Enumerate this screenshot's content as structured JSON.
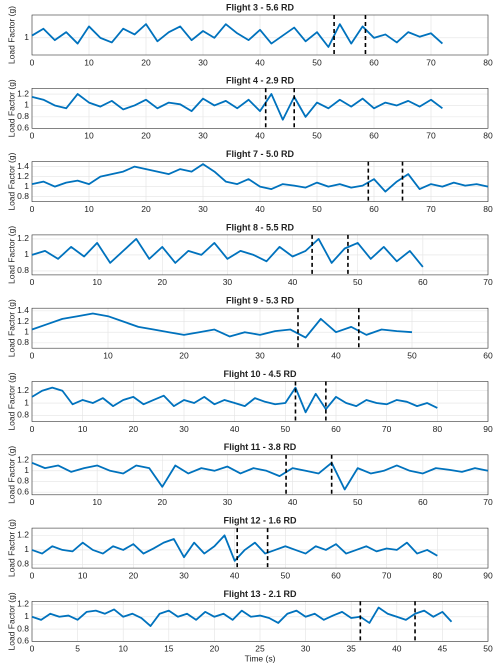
{
  "chart_data": [
    {
      "type": "line",
      "title": "Flight 3 - 5.6 RD",
      "y_label": "Load Factor (g)",
      "xlim": [
        0,
        80
      ],
      "xticks": [
        0,
        10,
        20,
        30,
        40,
        50,
        60,
        70,
        80
      ],
      "ylim": [
        0.85,
        1.2
      ],
      "yticks": [
        1
      ],
      "grid": true,
      "event_lines": [
        53,
        58.5
      ],
      "series": [
        {
          "color": "#0072bd",
          "x": [
            0,
            2,
            4,
            6,
            8,
            10,
            12,
            14,
            16,
            18,
            20,
            22,
            24,
            26,
            28,
            30,
            32,
            34,
            36,
            38,
            40,
            42,
            44,
            46,
            48,
            50,
            52,
            54,
            56,
            58,
            60,
            62,
            64,
            66,
            68,
            70,
            72
          ],
          "values": [
            1.02,
            1.08,
            0.98,
            1.05,
            0.95,
            1.1,
            1.0,
            0.96,
            1.08,
            1.03,
            1.12,
            0.97,
            1.05,
            1.1,
            0.98,
            1.06,
            1.0,
            1.12,
            1.04,
            0.98,
            1.07,
            0.95,
            1.02,
            1.09,
            0.97,
            1.05,
            0.92,
            1.12,
            0.95,
            1.1,
            1.0,
            1.03,
            0.96,
            1.05,
            1.01,
            1.04,
            0.95
          ]
        }
      ]
    },
    {
      "type": "line",
      "title": "Flight 4 - 2.9 RD",
      "y_label": "Load Factor (g)",
      "xlim": [
        0,
        80
      ],
      "xticks": [
        0,
        10,
        20,
        30,
        40,
        50,
        60,
        70,
        80
      ],
      "ylim": [
        0.6,
        1.3
      ],
      "yticks": [
        0.6,
        0.8,
        1,
        1.2
      ],
      "grid": true,
      "event_lines": [
        41,
        46
      ],
      "series": [
        {
          "color": "#0072bd",
          "x": [
            0,
            2,
            4,
            6,
            8,
            10,
            12,
            14,
            16,
            18,
            20,
            22,
            24,
            26,
            28,
            30,
            32,
            34,
            36,
            38,
            40,
            42,
            44,
            46,
            48,
            50,
            52,
            54,
            56,
            58,
            60,
            62,
            64,
            66,
            68,
            70,
            72
          ],
          "values": [
            1.15,
            1.1,
            1.0,
            0.95,
            1.2,
            1.05,
            0.98,
            1.08,
            0.93,
            1.0,
            1.1,
            0.95,
            1.05,
            1.02,
            0.9,
            1.12,
            1.0,
            1.08,
            0.95,
            1.1,
            0.9,
            1.2,
            0.75,
            1.15,
            0.8,
            1.05,
            0.95,
            1.1,
            0.98,
            1.12,
            0.95,
            1.05,
            1.0,
            1.08,
            0.98,
            1.1,
            0.95
          ]
        }
      ]
    },
    {
      "type": "line",
      "title": "Flight 7 - 5.0 RD",
      "y_label": "Load Factor (g)",
      "xlim": [
        0,
        80
      ],
      "xticks": [
        0,
        10,
        20,
        30,
        40,
        50,
        60,
        70,
        80
      ],
      "ylim": [
        0.7,
        1.5
      ],
      "yticks": [
        0.8,
        1,
        1.2,
        1.4
      ],
      "grid": true,
      "event_lines": [
        59,
        65
      ],
      "series": [
        {
          "color": "#0072bd",
          "x": [
            0,
            2,
            4,
            6,
            8,
            10,
            12,
            14,
            16,
            18,
            20,
            22,
            24,
            26,
            28,
            30,
            32,
            34,
            36,
            38,
            40,
            42,
            44,
            46,
            48,
            50,
            52,
            54,
            56,
            58,
            60,
            62,
            64,
            66,
            68,
            70,
            72,
            74,
            76,
            78,
            80
          ],
          "values": [
            1.05,
            1.1,
            1.0,
            1.08,
            1.12,
            1.05,
            1.2,
            1.25,
            1.3,
            1.4,
            1.35,
            1.3,
            1.25,
            1.35,
            1.3,
            1.45,
            1.3,
            1.1,
            1.05,
            1.15,
            1.0,
            0.95,
            1.05,
            1.02,
            0.98,
            1.08,
            1.0,
            1.05,
            0.98,
            1.02,
            1.15,
            0.9,
            1.1,
            1.25,
            0.95,
            1.05,
            1.0,
            1.08,
            1.02,
            1.05,
            1.0
          ]
        }
      ]
    },
    {
      "type": "line",
      "title": "Flight 8 - 5.5 RD",
      "y_label": "Load Factor (g)",
      "xlim": [
        0,
        70
      ],
      "xticks": [
        0,
        10,
        20,
        30,
        40,
        50,
        60,
        70
      ],
      "ylim": [
        0.75,
        1.25
      ],
      "yticks": [
        0.8,
        1,
        1.2
      ],
      "grid": true,
      "event_lines": [
        43,
        48.5
      ],
      "series": [
        {
          "color": "#0072bd",
          "x": [
            0,
            2,
            4,
            6,
            8,
            10,
            12,
            14,
            16,
            18,
            20,
            22,
            24,
            26,
            28,
            30,
            32,
            34,
            36,
            38,
            40,
            42,
            44,
            46,
            48,
            50,
            52,
            54,
            56,
            58,
            60
          ],
          "values": [
            1.0,
            1.05,
            0.95,
            1.1,
            0.98,
            1.15,
            0.9,
            1.05,
            1.2,
            0.95,
            1.1,
            0.9,
            1.05,
            1.0,
            1.15,
            0.95,
            1.05,
            1.0,
            0.92,
            1.1,
            0.98,
            1.05,
            1.2,
            0.9,
            1.08,
            1.15,
            0.95,
            1.1,
            0.92,
            1.05,
            0.85
          ]
        }
      ]
    },
    {
      "type": "line",
      "title": "Flight 9 - 5.3 RD",
      "y_label": "Load Factor (g)",
      "xlim": [
        0,
        60
      ],
      "xticks": [
        0,
        10,
        20,
        30,
        40,
        50,
        60
      ],
      "ylim": [
        0.7,
        1.45
      ],
      "yticks": [
        0.8,
        1,
        1.2,
        1.4
      ],
      "grid": true,
      "event_lines": [
        35,
        43
      ],
      "series": [
        {
          "color": "#0072bd",
          "x": [
            0,
            2,
            4,
            6,
            8,
            10,
            12,
            14,
            16,
            18,
            20,
            22,
            24,
            26,
            28,
            30,
            32,
            34,
            36,
            38,
            40,
            42,
            44,
            46,
            48,
            50
          ],
          "values": [
            1.05,
            1.15,
            1.25,
            1.3,
            1.35,
            1.3,
            1.2,
            1.1,
            1.05,
            1.0,
            0.95,
            1.0,
            1.05,
            0.92,
            1.0,
            0.95,
            1.02,
            1.05,
            0.9,
            1.25,
            1.0,
            1.1,
            0.95,
            1.05,
            1.02,
            1.0
          ]
        }
      ]
    },
    {
      "type": "line",
      "title": "Flight 10 - 4.5 RD",
      "y_label": "Load Factor (g)",
      "xlim": [
        0,
        90
      ],
      "xticks": [
        0,
        10,
        20,
        30,
        40,
        50,
        60,
        70,
        80,
        90
      ],
      "ylim": [
        0.7,
        1.35
      ],
      "yticks": [
        0.8,
        1,
        1.2
      ],
      "grid": true,
      "event_lines": [
        52,
        58
      ],
      "series": [
        {
          "color": "#0072bd",
          "x": [
            0,
            2,
            4,
            6,
            8,
            10,
            12,
            14,
            16,
            18,
            20,
            22,
            24,
            26,
            28,
            30,
            32,
            34,
            36,
            38,
            40,
            42,
            44,
            46,
            48,
            50,
            52,
            54,
            56,
            58,
            60,
            62,
            64,
            66,
            68,
            70,
            72,
            74,
            76,
            78,
            80
          ],
          "values": [
            1.1,
            1.2,
            1.25,
            1.2,
            0.98,
            1.05,
            1.0,
            1.08,
            0.95,
            1.05,
            1.1,
            0.98,
            1.05,
            1.12,
            0.95,
            1.05,
            1.0,
            1.1,
            0.98,
            1.05,
            1.0,
            0.95,
            1.08,
            1.02,
            0.98,
            1.0,
            1.25,
            0.85,
            1.15,
            0.9,
            1.1,
            1.0,
            0.95,
            1.05,
            1.0,
            0.98,
            1.05,
            1.02,
            0.95,
            1.0,
            0.92
          ]
        }
      ]
    },
    {
      "type": "line",
      "title": "Flight 11 - 3.8 RD",
      "y_label": "Load Factor (g)",
      "xlim": [
        0,
        70
      ],
      "xticks": [
        0,
        10,
        20,
        30,
        40,
        50,
        60,
        70
      ],
      "ylim": [
        0.55,
        1.3
      ],
      "yticks": [
        0.6,
        0.8,
        1,
        1.2
      ],
      "grid": true,
      "event_lines": [
        39,
        46
      ],
      "series": [
        {
          "color": "#0072bd",
          "x": [
            0,
            2,
            4,
            6,
            8,
            10,
            12,
            14,
            16,
            18,
            20,
            22,
            24,
            26,
            28,
            30,
            32,
            34,
            36,
            38,
            40,
            42,
            44,
            46,
            48,
            50,
            52,
            54,
            56,
            58,
            60,
            62,
            64,
            66,
            68,
            70
          ],
          "values": [
            1.15,
            1.05,
            1.1,
            0.98,
            1.05,
            1.1,
            1.0,
            0.95,
            1.1,
            1.05,
            0.7,
            1.1,
            0.95,
            1.05,
            1.0,
            1.08,
            0.95,
            1.05,
            1.0,
            0.9,
            1.05,
            1.0,
            0.95,
            1.15,
            0.65,
            1.05,
            0.95,
            1.0,
            1.1,
            1.0,
            0.95,
            1.05,
            1.02,
            0.98,
            1.05,
            1.0
          ]
        }
      ]
    },
    {
      "type": "line",
      "title": "Flight 12 - 1.6 RD",
      "y_label": "Load Factor (g)",
      "xlim": [
        0,
        90
      ],
      "xticks": [
        0,
        10,
        20,
        30,
        40,
        50,
        60,
        70,
        80,
        90
      ],
      "ylim": [
        0.75,
        1.3
      ],
      "yticks": [
        0.8,
        1,
        1.2
      ],
      "grid": true,
      "event_lines": [
        40.5,
        46.5
      ],
      "series": [
        {
          "color": "#0072bd",
          "x": [
            0,
            2,
            4,
            6,
            8,
            10,
            12,
            14,
            16,
            18,
            20,
            22,
            24,
            26,
            28,
            30,
            32,
            34,
            36,
            38,
            40,
            42,
            44,
            46,
            48,
            50,
            52,
            54,
            56,
            58,
            60,
            62,
            64,
            66,
            68,
            70,
            72,
            74,
            76,
            78,
            80
          ],
          "values": [
            1.0,
            0.95,
            1.05,
            1.0,
            0.98,
            1.1,
            1.0,
            0.95,
            1.05,
            1.0,
            1.08,
            0.95,
            1.02,
            1.1,
            1.15,
            0.9,
            1.1,
            0.95,
            1.05,
            1.2,
            0.85,
            1.0,
            1.1,
            0.95,
            1.0,
            1.05,
            1.0,
            0.95,
            1.05,
            1.0,
            1.08,
            0.95,
            1.0,
            1.05,
            0.98,
            1.02,
            1.0,
            1.1,
            0.95,
            1.0,
            0.92
          ]
        }
      ]
    },
    {
      "type": "line",
      "title": "Flight 13 - 2.1 RD",
      "y_label": "Load Factor (g)",
      "x_label": "Time (s)",
      "xlim": [
        0,
        50
      ],
      "xticks": [
        0,
        5,
        10,
        15,
        20,
        25,
        30,
        35,
        40,
        45,
        50
      ],
      "ylim": [
        0.6,
        1.25
      ],
      "yticks": [
        0.6,
        0.8,
        1,
        1.2
      ],
      "grid": true,
      "event_lines": [
        36,
        42
      ],
      "series": [
        {
          "color": "#0072bd",
          "x": [
            0,
            1,
            2,
            3,
            4,
            5,
            6,
            7,
            8,
            9,
            10,
            11,
            12,
            13,
            14,
            15,
            16,
            17,
            18,
            19,
            20,
            21,
            22,
            23,
            24,
            25,
            26,
            27,
            28,
            29,
            30,
            31,
            32,
            33,
            34,
            35,
            36,
            37,
            38,
            39,
            40,
            41,
            42,
            43,
            44,
            45,
            46
          ],
          "values": [
            1.0,
            0.95,
            1.05,
            1.0,
            1.02,
            0.95,
            1.08,
            1.1,
            1.05,
            1.12,
            1.0,
            1.05,
            0.98,
            0.85,
            1.05,
            1.1,
            1.0,
            1.05,
            0.95,
            1.08,
            1.0,
            1.05,
            0.95,
            1.1,
            1.0,
            1.02,
            0.98,
            0.9,
            1.05,
            1.1,
            1.0,
            1.05,
            0.95,
            1.02,
            1.08,
            0.98,
            1.0,
            0.9,
            1.15,
            1.05,
            1.0,
            0.95,
            1.05,
            1.1,
            1.0,
            1.08,
            0.92
          ]
        }
      ]
    }
  ]
}
